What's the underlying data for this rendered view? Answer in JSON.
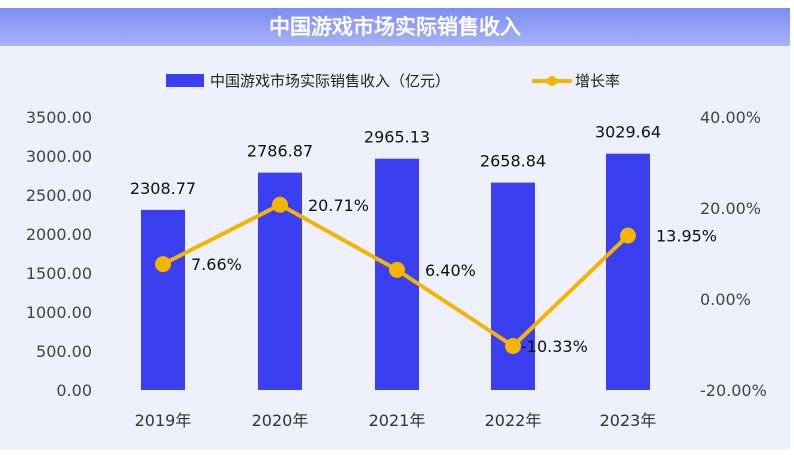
{
  "chart_data": {
    "type": "bar+line",
    "title": "中国游戏市场实际销售收入",
    "categories": [
      "2019年",
      "2020年",
      "2021年",
      "2022年",
      "2023年"
    ],
    "series": [
      {
        "name": "中国游戏市场实际销售收入（亿元）",
        "type": "bar",
        "axis": "left",
        "color": "#3a40f0",
        "values": [
          2308.77,
          2786.87,
          2965.13,
          2658.84,
          3029.64
        ],
        "labels": [
          "2308.77",
          "2786.87",
          "2965.13",
          "2658.84",
          "3029.64"
        ]
      },
      {
        "name": "增长率",
        "type": "line",
        "axis": "right",
        "color": "#f5b400",
        "values": [
          7.66,
          20.71,
          6.4,
          -10.33,
          13.95
        ],
        "labels": [
          "7.66%",
          "20.71%",
          "6.40%",
          "-10.33%",
          "13.95%"
        ]
      }
    ],
    "left_axis": {
      "range": [
        0,
        3500
      ],
      "ticks": [
        "0.00",
        "500.00",
        "1000.00",
        "1500.00",
        "2000.00",
        "2500.00",
        "3000.00",
        "3500.00"
      ]
    },
    "right_axis": {
      "range": [
        -20,
        40
      ],
      "ticks": [
        "-20.00%",
        "0.00%",
        "20.00%",
        "40.00%"
      ]
    },
    "legend_position": "top-center",
    "grid": false
  }
}
